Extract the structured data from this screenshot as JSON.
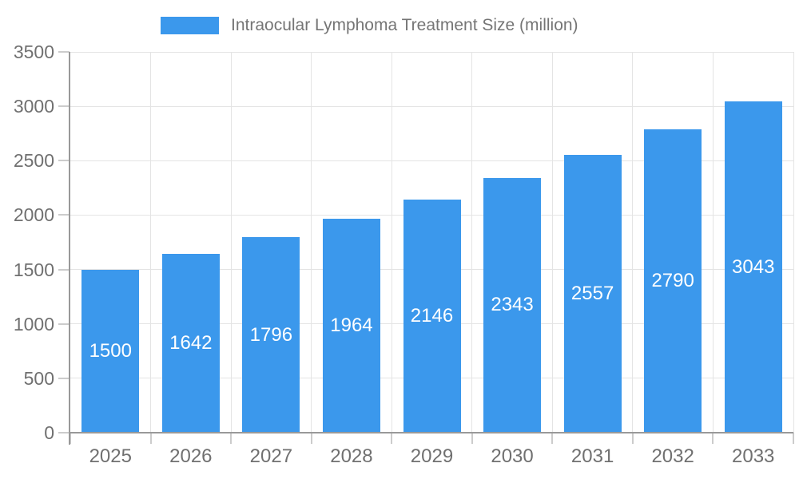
{
  "chart_data": {
    "type": "bar",
    "title": "Intraocular Lymphoma Treatment Size (million)",
    "legend": {
      "position": "top",
      "label": "Intraocular Lymphoma Treatment Size (million)"
    },
    "categories": [
      "2025",
      "2026",
      "2027",
      "2028",
      "2029",
      "2030",
      "2031",
      "2032",
      "2033"
    ],
    "values": [
      1500,
      1642,
      1796,
      1964,
      2146,
      2343,
      2557,
      2790,
      3043
    ],
    "xlabel": "",
    "ylabel": "",
    "ylim": [
      0,
      3500
    ],
    "yticks": [
      "0",
      "500",
      "1000",
      "1500",
      "2000",
      "2500",
      "3000",
      "3500"
    ],
    "ytick_values": [
      0,
      500,
      1000,
      1500,
      2000,
      2500,
      3000,
      3500
    ],
    "grid": true,
    "value_labels_inside_bars": true,
    "colors": {
      "bar": "#3B98EC",
      "value_label": "#FFFFFF",
      "axis_label": "#707070",
      "legend_label": "#757575",
      "gridline": "#E4E4E4",
      "tick_mark": "#CCCCCC",
      "axis_line": "#999999"
    }
  }
}
